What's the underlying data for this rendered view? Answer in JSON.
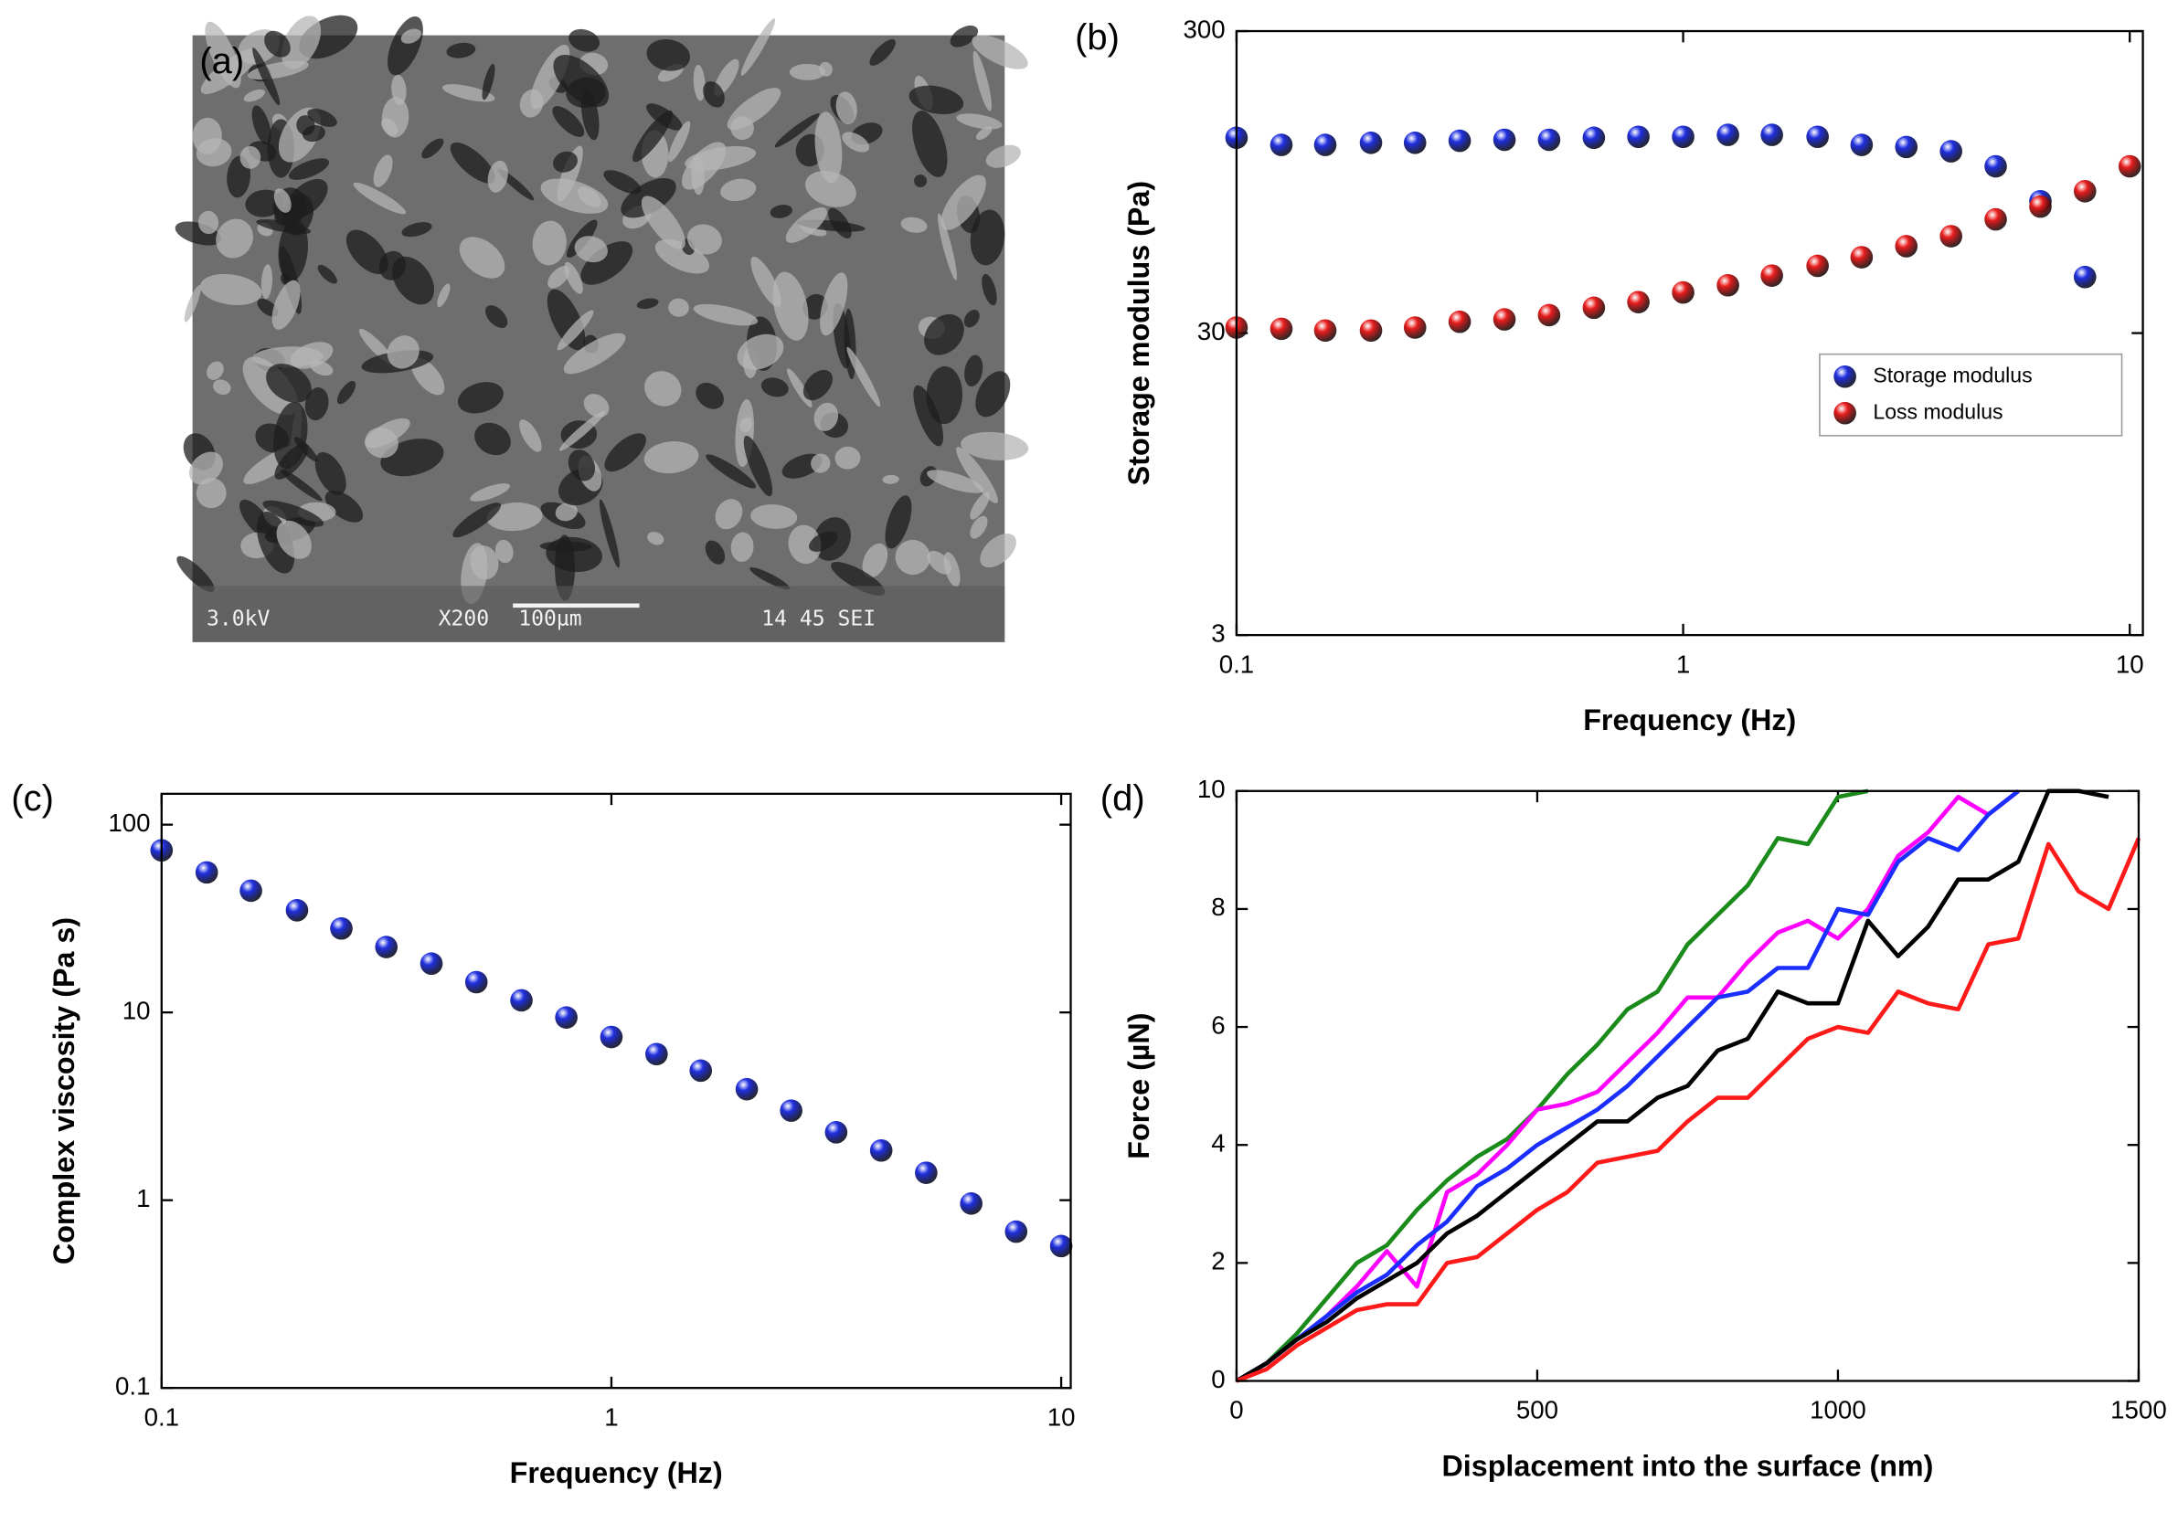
{
  "chart_data": [
    {
      "type": "image",
      "panel_label": "(a)",
      "annotations": [
        "3.0kV",
        "X200",
        "100µm",
        "14 45 SEI"
      ]
    },
    {
      "type": "scatter",
      "panel_label": "(b)",
      "xlabel": "Frequency (Hz)",
      "ylabel": "Storage modulus (Pa)",
      "xscale": "log",
      "yscale": "log",
      "xlim": [
        0.1,
        10.7
      ],
      "ylim": [
        3,
        300
      ],
      "xticks": [
        0.1,
        1,
        10
      ],
      "yticks": [
        3,
        30,
        300
      ],
      "legend": "center right",
      "x": [
        0.1,
        0.126,
        0.158,
        0.2,
        0.251,
        0.316,
        0.398,
        0.501,
        0.631,
        0.794,
        1,
        1.26,
        1.58,
        2,
        2.51,
        3.16,
        3.98,
        5.01,
        6.31,
        7.94,
        10
      ],
      "series": [
        {
          "name": "Storage modulus",
          "color": "#1f2fe0",
          "values": [
            133,
            126,
            126,
            128,
            128,
            130,
            131,
            131,
            133,
            134,
            134,
            136,
            136,
            134,
            126,
            124,
            120,
            107,
            82,
            46,
            null
          ]
        },
        {
          "name": "Loss modulus",
          "color": "#e81c1c",
          "values": [
            31.3,
            31.0,
            30.6,
            30.6,
            31.3,
            32.7,
            33.3,
            34.4,
            36.4,
            38.0,
            40.9,
            43.2,
            46.5,
            50.1,
            53.5,
            58.2,
            62.8,
            71.4,
            78.7,
            88.5,
            107
          ]
        }
      ]
    },
    {
      "type": "scatter",
      "panel_label": "(c)",
      "xlabel": "Frequency (Hz)",
      "ylabel": "Complex viscosity (Pa s)",
      "xscale": "log",
      "yscale": "log",
      "xlim": [
        0.1,
        10.5
      ],
      "ylim": [
        0.1,
        146
      ],
      "xticks": [
        0.1,
        1,
        10
      ],
      "yticks": [
        0.1,
        1,
        10,
        100
      ],
      "x": [
        0.1,
        0.126,
        0.158,
        0.2,
        0.251,
        0.316,
        0.398,
        0.501,
        0.631,
        0.794,
        1,
        1.26,
        1.58,
        2,
        2.51,
        3.16,
        3.98,
        5.01,
        6.31,
        7.94,
        10
      ],
      "series": [
        {
          "color": "#1f2fe0",
          "values": [
            73,
            55.7,
            44.5,
            35,
            28,
            22.3,
            18.2,
            14.5,
            11.6,
            9.4,
            7.4,
            6.0,
            4.9,
            3.9,
            3.0,
            2.3,
            1.84,
            1.4,
            0.96,
            0.68,
            0.57
          ]
        }
      ]
    },
    {
      "type": "line",
      "panel_label": "(d)",
      "xlabel": "Displacement into the surface (nm)",
      "ylabel": "Force (µN)",
      "xlim": [
        0,
        1500
      ],
      "ylim": [
        0,
        10
      ],
      "xticks": [
        0,
        500,
        1000,
        1500
      ],
      "yticks": [
        0,
        2,
        4,
        6,
        8,
        10
      ],
      "x": [
        0,
        50,
        100,
        150,
        200,
        250,
        300,
        350,
        400,
        450,
        500,
        550,
        600,
        650,
        700,
        750,
        800,
        850,
        900,
        950,
        1000,
        1050,
        1100,
        1150,
        1200,
        1250,
        1300,
        1350,
        1400,
        1450,
        1500
      ],
      "series": [
        {
          "color": "#1a8a1a",
          "values": [
            0,
            0.3,
            0.8,
            1.4,
            2.0,
            2.3,
            2.9,
            3.4,
            3.8,
            4.1,
            4.6,
            5.2,
            5.7,
            6.3,
            6.6,
            7.4,
            7.9,
            8.4,
            9.2,
            9.1,
            9.9,
            10,
            null,
            null,
            null,
            null,
            null,
            null,
            null,
            null,
            null
          ]
        },
        {
          "color": "#ff00ff",
          "values": [
            0,
            0.3,
            0.7,
            1.1,
            1.6,
            2.2,
            1.6,
            3.2,
            3.5,
            4.0,
            4.6,
            4.7,
            4.9,
            5.4,
            5.9,
            6.5,
            6.5,
            7.1,
            7.6,
            7.8,
            7.5,
            8.0,
            8.9,
            9.3,
            9.9,
            9.6,
            10,
            null,
            null,
            null,
            null
          ]
        },
        {
          "color": "#1a2eff",
          "values": [
            0,
            0.3,
            0.7,
            1.1,
            1.5,
            1.8,
            2.3,
            2.7,
            3.3,
            3.6,
            4.0,
            4.3,
            4.6,
            5.0,
            5.5,
            6.0,
            6.5,
            6.6,
            7.0,
            7.0,
            8.0,
            7.9,
            8.8,
            9.2,
            9.0,
            9.6,
            10,
            null,
            null,
            null,
            null
          ]
        },
        {
          "color": "#000000",
          "values": [
            0,
            0.3,
            0.7,
            1.0,
            1.4,
            1.7,
            2.0,
            2.5,
            2.8,
            3.2,
            3.6,
            4.0,
            4.4,
            4.4,
            4.8,
            5.0,
            5.6,
            5.8,
            6.6,
            6.4,
            6.4,
            7.8,
            7.2,
            7.7,
            8.5,
            8.5,
            8.8,
            10,
            10,
            9.9,
            null
          ]
        },
        {
          "color": "#ff1a1a",
          "values": [
            0,
            0.2,
            0.6,
            0.9,
            1.2,
            1.3,
            1.3,
            2.0,
            2.1,
            2.5,
            2.9,
            3.2,
            3.7,
            3.8,
            3.9,
            4.4,
            4.8,
            4.8,
            5.3,
            5.8,
            6.0,
            5.9,
            6.6,
            6.4,
            6.3,
            7.4,
            7.5,
            9.1,
            8.3,
            8.0,
            9.2
          ]
        }
      ]
    }
  ]
}
